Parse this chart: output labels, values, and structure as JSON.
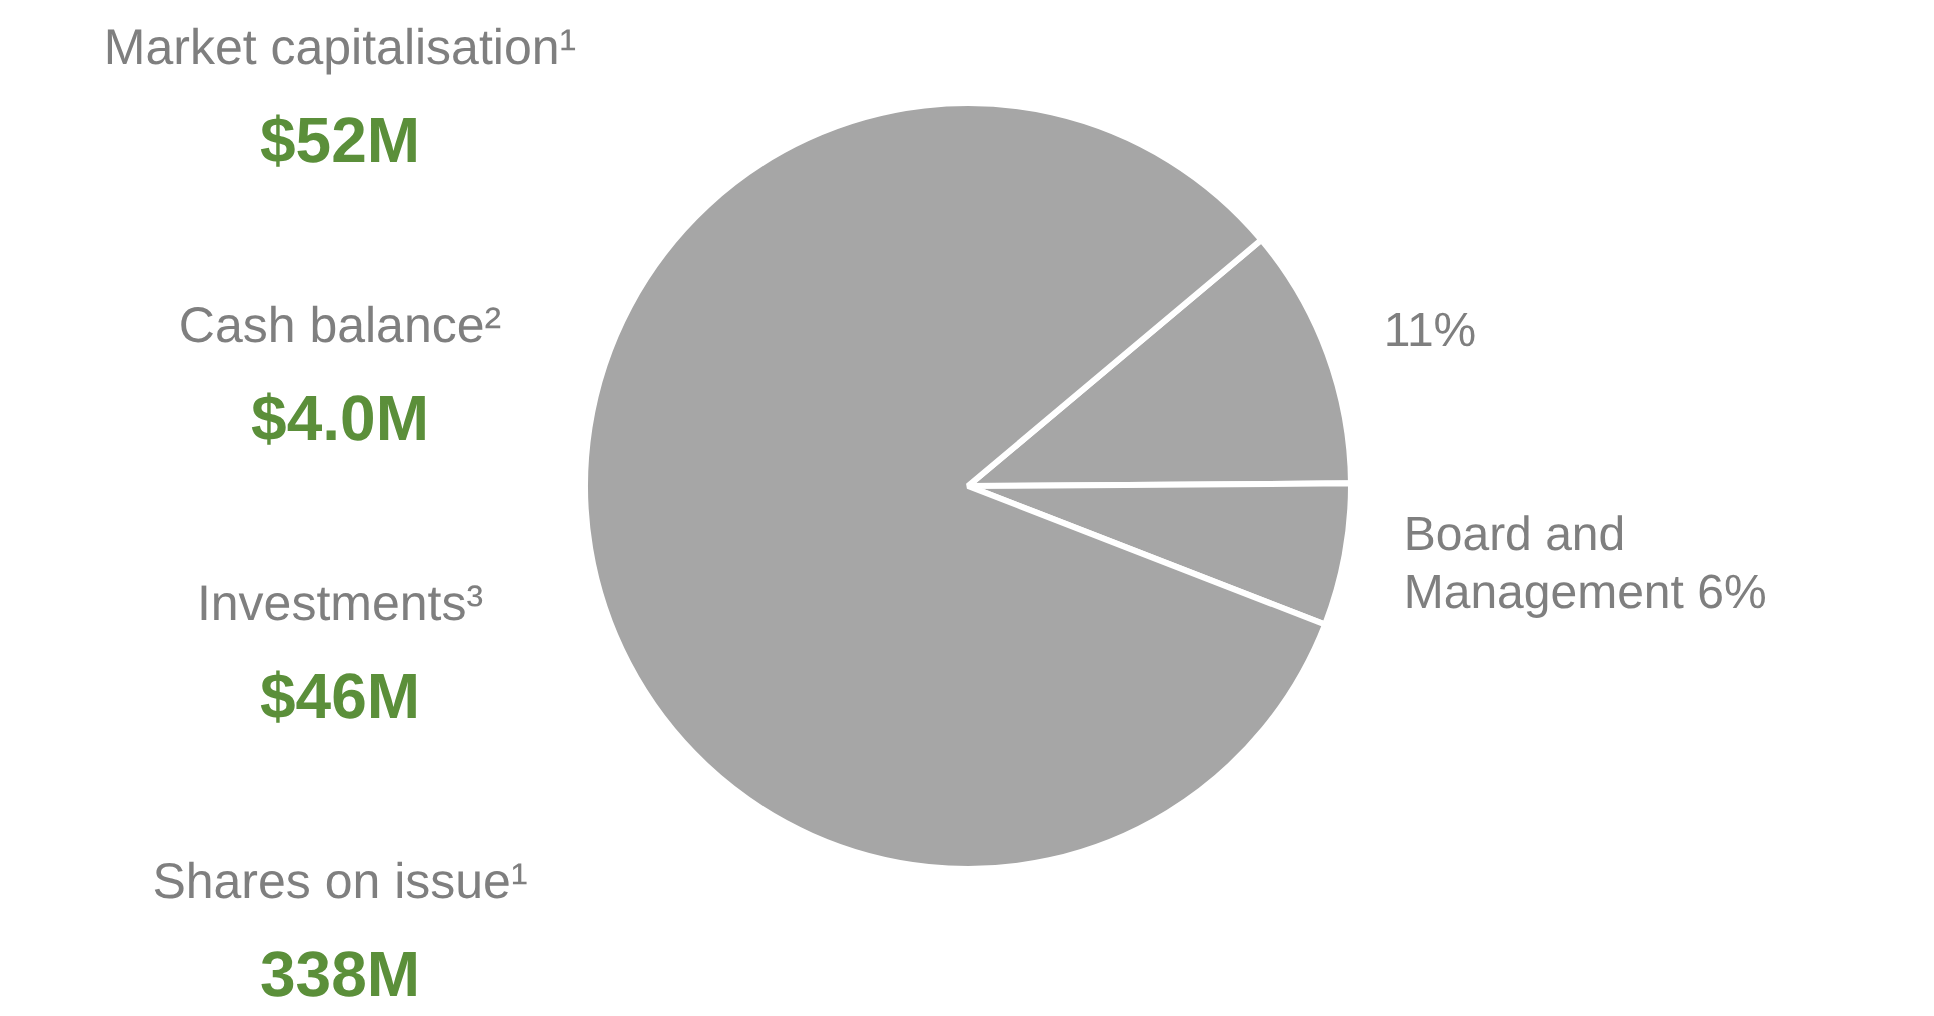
{
  "chart_data": {
    "type": "pie",
    "categories": [
      null,
      "Board and Management",
      null
    ],
    "values": [
      11,
      6,
      83
    ],
    "colors": [
      "#a6a6a6",
      "#a6a6a6",
      "#a6a6a6"
    ],
    "value_labels": [
      "11%",
      "6%",
      null
    ],
    "legend": false,
    "annotations": [
      "Market capitalisation¹",
      "$52M",
      "Cash balance²",
      "$4.0M",
      "Investments³",
      "$46M",
      "Shares on issue¹",
      "338M"
    ]
  }
}
